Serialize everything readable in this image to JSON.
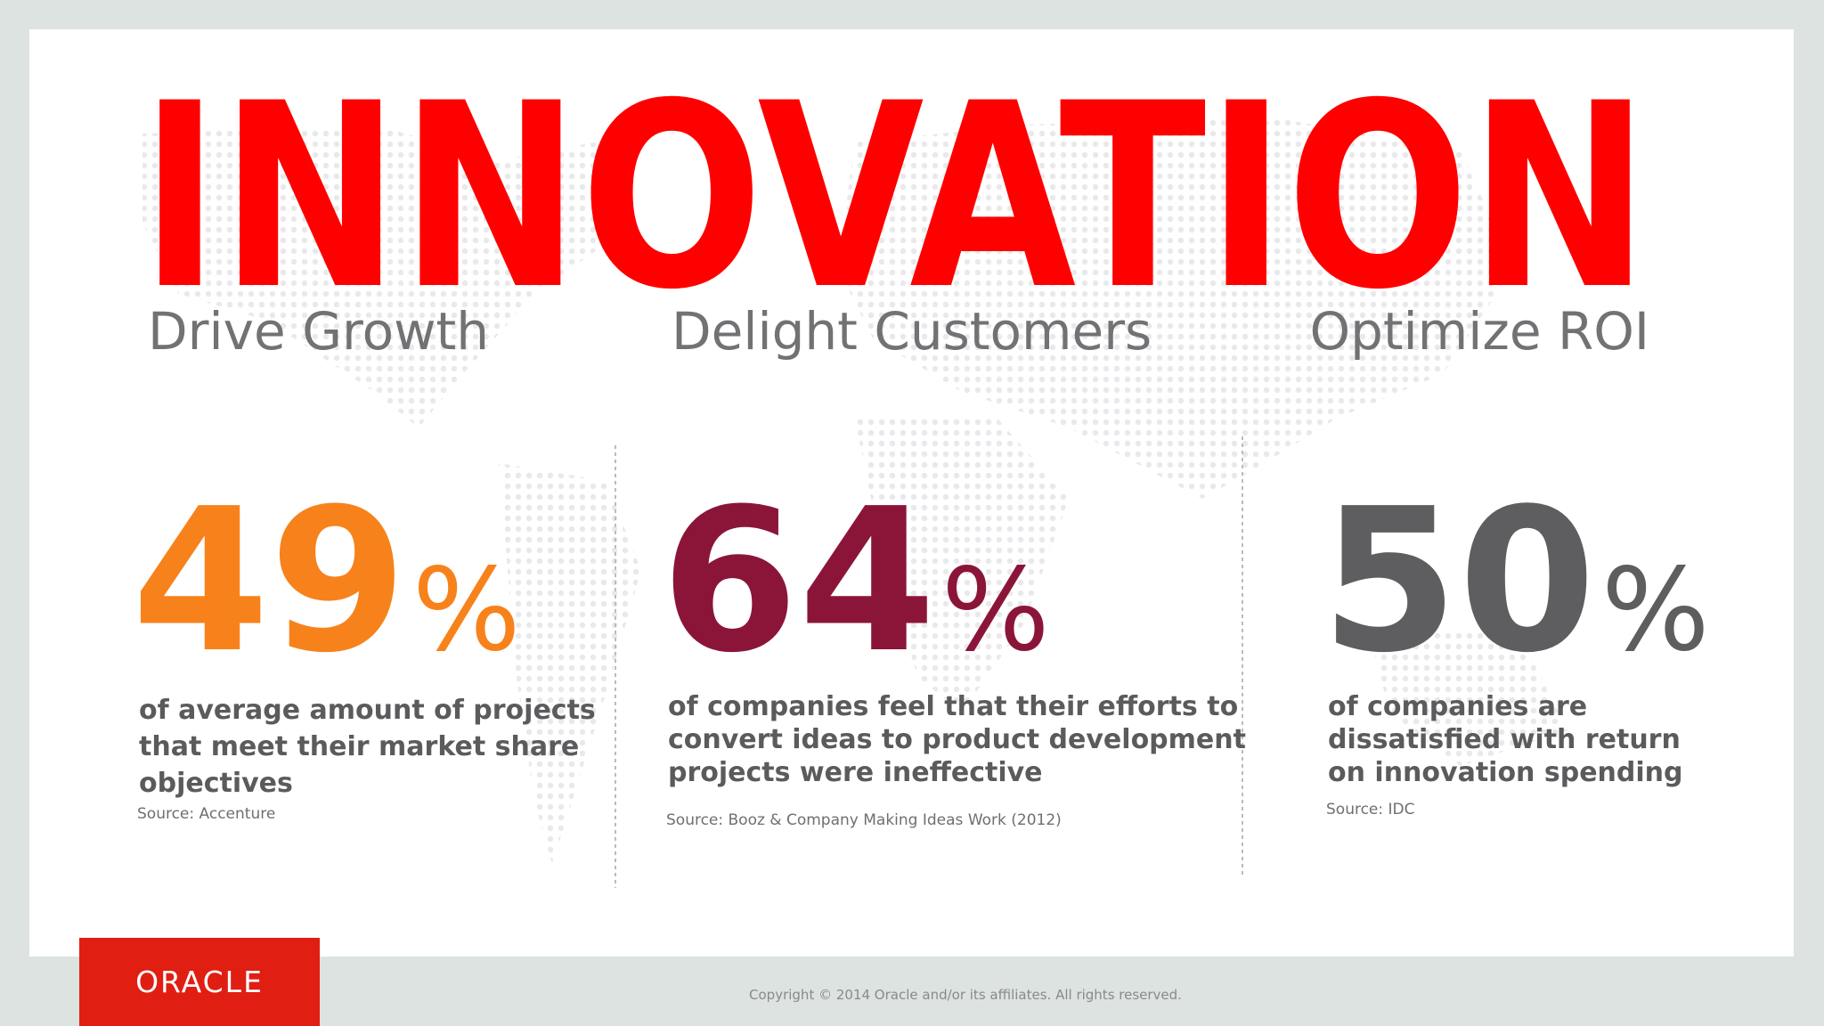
{
  "title": "INNOVATION",
  "pillars": [
    {
      "heading": "Drive Growth",
      "stat": 49,
      "unit": "%",
      "description": [
        "of average amount of projects",
        "that meet their market share",
        "objectives"
      ],
      "source": "Source: Accenture"
    },
    {
      "heading": "Delight Customers",
      "stat": 64,
      "unit": "%",
      "description": [
        "of companies feel that their efforts to",
        "convert ideas to product development",
        "projects were ineffective"
      ],
      "source": "Source: Booz & Company Making Ideas Work (2012)"
    },
    {
      "heading": "Optimize ROI",
      "stat": 50,
      "unit": "%",
      "description": [
        "of companies are",
        "dissatisfied with return",
        "on innovation spending"
      ],
      "source": "Source: IDC"
    }
  ],
  "logo": "ORACLE",
  "copyright": "Copyright © 2014 Oracle and/or its affiliates. All rights reserved."
}
